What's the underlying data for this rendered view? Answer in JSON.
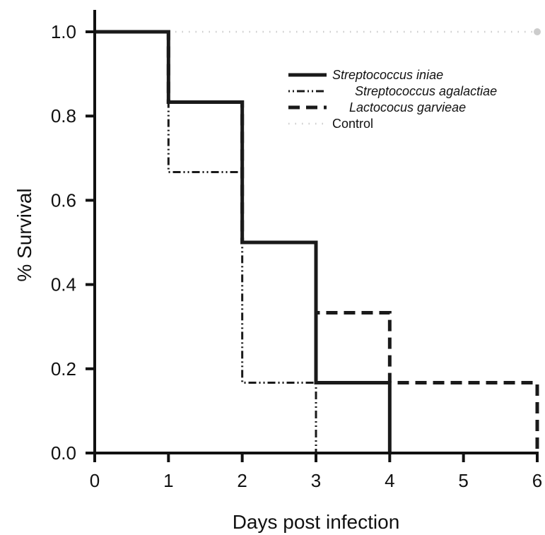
{
  "chart_data": {
    "type": "line",
    "step": "post",
    "xlabel": "Days post infection",
    "ylabel": "% Survival",
    "xlim": [
      0,
      6
    ],
    "ylim": [
      0,
      1
    ],
    "x_ticks": [
      "0",
      "1",
      "2",
      "3",
      "4",
      "5",
      "6"
    ],
    "y_ticks": [
      "0.0",
      "0.2",
      "0.4",
      "0.6",
      "0.8",
      "1.0"
    ],
    "grid": false,
    "legend_position": "top-right",
    "series": [
      {
        "name": "Streptococcus iniae",
        "style": "solid",
        "color": "#1a1a1a",
        "italic": true,
        "x": [
          0,
          1,
          2,
          3,
          4
        ],
        "y": [
          1.0,
          0.833,
          0.5,
          0.167,
          0.0
        ]
      },
      {
        "name": "Streptococcus agalactiae",
        "style": "dash-dot",
        "color": "#1a1a1a",
        "italic": true,
        "x": [
          0,
          1,
          2,
          3
        ],
        "y": [
          1.0,
          0.667,
          0.167,
          0.0
        ]
      },
      {
        "name": "Lactococus garvieae",
        "style": "dashed",
        "color": "#1a1a1a",
        "italic": true,
        "x": [
          0,
          1,
          2,
          3,
          4,
          6
        ],
        "y": [
          1.0,
          0.833,
          0.5,
          0.333,
          0.167,
          0.0
        ]
      },
      {
        "name": "Control",
        "style": "dotted",
        "color": "#cccccc",
        "italic": false,
        "x": [
          0,
          6
        ],
        "y": [
          1.0,
          1.0
        ]
      }
    ]
  }
}
